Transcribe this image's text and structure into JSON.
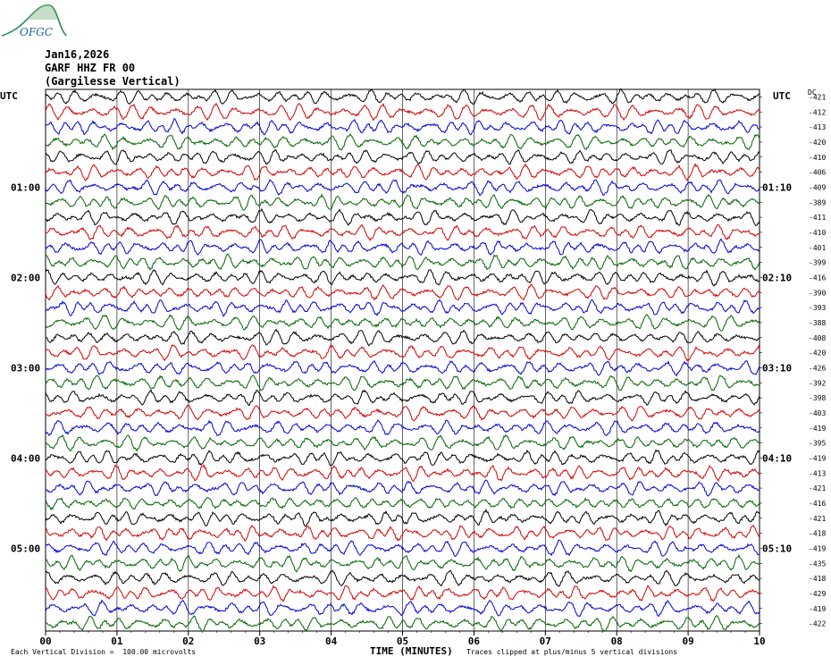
{
  "logo": {
    "text": "OFGC",
    "icon": "ofgc-logo-mountain"
  },
  "header": {
    "date": "Jan16,2026",
    "station": "GARF HHZ FR 00",
    "location": "(Gargilesse Vertical)"
  },
  "utc_left": "UTC",
  "utc_right": "UTC",
  "dc_label": "DC",
  "footer": {
    "division_note": "Each Vertical Division =  100.00 microvolts",
    "clip_note": "Traces clipped at plus/minus 5 vertical divisions"
  },
  "chart_data": {
    "type": "line",
    "title": "",
    "xlabel": "TIME (MINUTES)",
    "ylabel": "",
    "xlim": [
      0,
      10
    ],
    "x_ticks": [
      "00",
      "01",
      "02",
      "03",
      "04",
      "05",
      "06",
      "07",
      "08",
      "09",
      "10"
    ],
    "trace_count": 36,
    "colors": [
      "#000000",
      "#d40000",
      "#0000d4",
      "#006400"
    ],
    "left_time_labels": [
      {
        "row": 6,
        "label": "01:00"
      },
      {
        "row": 12,
        "label": "02:00"
      },
      {
        "row": 18,
        "label": "03:00"
      },
      {
        "row": 24,
        "label": "04:00"
      },
      {
        "row": 30,
        "label": "05:00"
      }
    ],
    "right_time_labels": [
      {
        "row": 6,
        "label": "01:10"
      },
      {
        "row": 12,
        "label": "02:10"
      },
      {
        "row": 18,
        "label": "03:10"
      },
      {
        "row": 24,
        "label": "04:10"
      },
      {
        "row": 30,
        "label": "05:10"
      }
    ],
    "dc_offsets": [
      -421,
      -412,
      -413,
      -420,
      -410,
      -406,
      -409,
      -389,
      -411,
      -410,
      -401,
      -399,
      -416,
      -390,
      -393,
      -388,
      -408,
      -420,
      -426,
      -392,
      -398,
      -403,
      -419,
      -395,
      -419,
      -413,
      -421,
      -416,
      -421,
      -418,
      -419,
      -435,
      -418,
      -429,
      -419,
      -422
    ],
    "grid": true
  }
}
